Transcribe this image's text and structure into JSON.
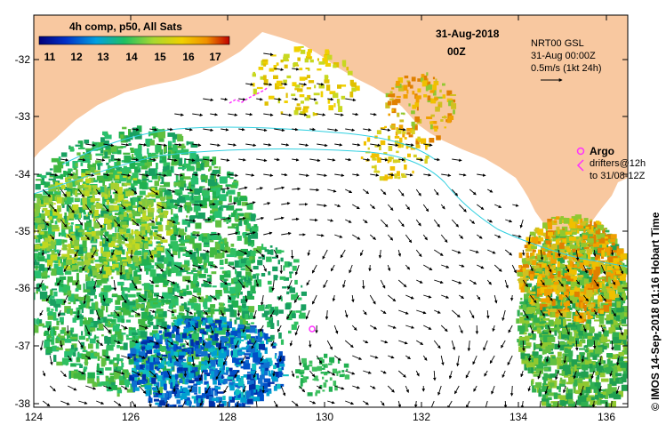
{
  "legend": {
    "title": "4h comp, p50, All Sats",
    "ticks": [
      "11",
      "12",
      "13",
      "14",
      "15",
      "16",
      "17"
    ],
    "colors": [
      "#00007a",
      "#0030c8",
      "#00a0e0",
      "#20c060",
      "#a8d830",
      "#f0d000",
      "#f09000",
      "#c00000"
    ]
  },
  "header": {
    "date": "31-Aug-2018",
    "time": "00Z",
    "product": "NRT00 GSL",
    "analysis_time": "31-Aug 00:00Z",
    "vector_scale": "0.5m/s (1kt 24h)"
  },
  "argo": {
    "label": "Argo",
    "drifters_label": "drifters@12h",
    "drifters_period": "to 31/08-12Z"
  },
  "credit": "© IMOS 14-Sep-2018 01:16 Hobart Time",
  "axes": {
    "lon_ticks": [
      "124",
      "126",
      "128",
      "130",
      "132",
      "134",
      "136"
    ],
    "lat_ticks": [
      "-32",
      "-33",
      "-34",
      "-35",
      "-36",
      "-37",
      "-38"
    ]
  },
  "colors": {
    "land": "#f8c8a0",
    "ocean": "#ffffff",
    "isobath": "#30d0e0",
    "argo": "#ff30ff"
  }
}
